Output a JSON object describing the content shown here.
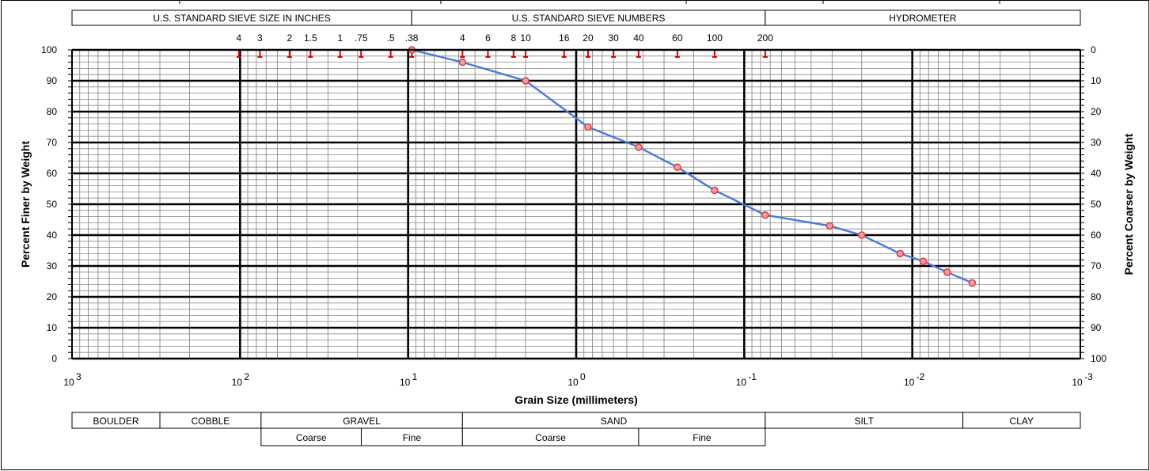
{
  "chart_data": {
    "type": "scatter",
    "title": "",
    "xlabel": "Grain Size (millimeters)",
    "ylabel": "Percent Finer by Weight",
    "ylabel_right": "Percent Coarser by Weight",
    "x_scale": "log",
    "x_reversed": true,
    "xlim": [
      1000,
      0.001
    ],
    "ylim": [
      0,
      100
    ],
    "y_ticks": [
      "0",
      "10",
      "20",
      "30",
      "40",
      "50",
      "60",
      "70",
      "80",
      "90",
      "100"
    ],
    "y_ticks_right": [
      "100",
      "90",
      "80",
      "70",
      "60",
      "50",
      "40",
      "30",
      "20",
      "10",
      "0"
    ],
    "x_ticks": [
      {
        "value": 1000,
        "base": "10",
        "exp": "3"
      },
      {
        "value": 100,
        "base": "10",
        "exp": "2"
      },
      {
        "value": 10,
        "base": "10",
        "exp": "1"
      },
      {
        "value": 1,
        "base": "10",
        "exp": "0"
      },
      {
        "value": 0.1,
        "base": "10",
        "exp": "-1"
      },
      {
        "value": 0.01,
        "base": "10",
        "exp": "-2"
      },
      {
        "value": 0.001,
        "base": "10",
        "exp": "-3"
      }
    ],
    "grid": true,
    "series": [
      {
        "name": "",
        "color": "#4a78e0",
        "marker_color": "#e04040",
        "points": [
          {
            "x": 9.5,
            "y": 100
          },
          {
            "x": 4.75,
            "y": 96
          },
          {
            "x": 2.0,
            "y": 90
          },
          {
            "x": 0.85,
            "y": 75
          },
          {
            "x": 0.425,
            "y": 68.5
          },
          {
            "x": 0.25,
            "y": 62
          },
          {
            "x": 0.15,
            "y": 54.5
          },
          {
            "x": 0.075,
            "y": 46.5
          },
          {
            "x": 0.031,
            "y": 43
          },
          {
            "x": 0.02,
            "y": 40
          },
          {
            "x": 0.0118,
            "y": 34
          },
          {
            "x": 0.0086,
            "y": 31.5
          },
          {
            "x": 0.0062,
            "y": 28
          },
          {
            "x": 0.0044,
            "y": 24.5
          }
        ]
      }
    ],
    "sieve_markers_inches": [
      {
        "label": "4",
        "x": 101.6
      },
      {
        "label": "3",
        "x": 76.2
      },
      {
        "label": "2",
        "x": 50.8
      },
      {
        "label": "1.5",
        "x": 38.1
      },
      {
        "label": "1",
        "x": 25.4
      },
      {
        "label": ".75",
        "x": 19.05
      },
      {
        "label": ".5",
        "x": 12.7
      },
      {
        "label": ".38",
        "x": 9.525
      }
    ],
    "sieve_markers_numbers": [
      {
        "label": "4",
        "x": 4.75
      },
      {
        "label": "6",
        "x": 3.35
      },
      {
        "label": "8",
        "x": 2.36
      },
      {
        "label": "10",
        "x": 2.0
      },
      {
        "label": "16",
        "x": 1.18
      },
      {
        "label": "20",
        "x": 0.85
      },
      {
        "label": "30",
        "x": 0.6
      },
      {
        "label": "40",
        "x": 0.425
      },
      {
        "label": "60",
        "x": 0.25
      },
      {
        "label": "100",
        "x": 0.15
      },
      {
        "label": "200",
        "x": 0.075
      }
    ],
    "header_table": [
      {
        "label": "U.S. STANDARD SIEVE SIZE IN INCHES",
        "from": 1000,
        "to": 9.525
      },
      {
        "label": "U.S. STANDARD SIEVE NUMBERS",
        "from": 9.525,
        "to": 0.075
      },
      {
        "label": "HYDROMETER",
        "from": 0.075,
        "to": 0.001
      }
    ],
    "classification_table": {
      "row1": [
        {
          "label": "BOULDER",
          "from": 1000,
          "to": 300
        },
        {
          "label": "COBBLE",
          "from": 300,
          "to": 75
        },
        {
          "label": "GRAVEL",
          "from": 75,
          "to": 4.75
        },
        {
          "label": "SAND",
          "from": 4.75,
          "to": 0.075
        },
        {
          "label": "SILT",
          "from": 0.075,
          "to": 0.005
        },
        {
          "label": "CLAY",
          "from": 0.005,
          "to": 0.001
        }
      ],
      "row2": [
        {
          "label": "Coarse",
          "from": 75,
          "to": 19
        },
        {
          "label": "Fine",
          "from": 19,
          "to": 4.75
        },
        {
          "label": "Coarse",
          "from": 4.75,
          "to": 0.425
        },
        {
          "label": "Fine",
          "from": 0.425,
          "to": 0.075
        }
      ]
    }
  }
}
